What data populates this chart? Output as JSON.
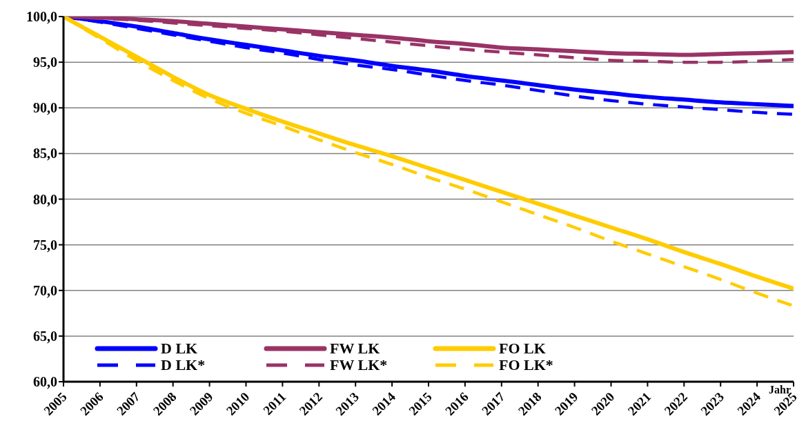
{
  "chart_data": {
    "type": "line",
    "xlabel": "Jahr",
    "x": [
      2005,
      2006,
      2007,
      2008,
      2009,
      2010,
      2011,
      2012,
      2013,
      2014,
      2015,
      2016,
      2017,
      2018,
      2019,
      2020,
      2021,
      2022,
      2023,
      2024,
      2025
    ],
    "xlim": [
      2005,
      2025
    ],
    "xticks": [
      2005,
      2006,
      2007,
      2008,
      2009,
      2010,
      2011,
      2012,
      2013,
      2014,
      2015,
      2016,
      2017,
      2018,
      2019,
      2020,
      2021,
      2022,
      2023,
      2024,
      2025
    ],
    "ylim": [
      60,
      100
    ],
    "yticks": [
      {
        "value": 60,
        "label": "60,0"
      },
      {
        "value": 65,
        "label": "65,0"
      },
      {
        "value": 70,
        "label": "70,0"
      },
      {
        "value": 75,
        "label": "75,0"
      },
      {
        "value": 80,
        "label": "80,0"
      },
      {
        "value": 85,
        "label": "85,0"
      },
      {
        "value": 90,
        "label": "90,0"
      },
      {
        "value": 95,
        "label": "95,0"
      },
      {
        "value": 100,
        "label": "100,0"
      }
    ],
    "grid": "y",
    "legend": "bottom left",
    "marker": "none",
    "series": [
      {
        "name": "D LK",
        "color": "#0000ff",
        "line_style": "solid",
        "values": [
          100,
          99.5,
          98.9,
          98.2,
          97.5,
          96.9,
          96.3,
          95.7,
          95.2,
          94.6,
          94.1,
          93.5,
          93.0,
          92.5,
          92.0,
          91.6,
          91.2,
          90.9,
          90.6,
          90.4,
          90.2
        ]
      },
      {
        "name": "D LK*",
        "color": "#0000ff",
        "line_style": "dashed",
        "values": [
          100,
          99.4,
          98.7,
          98.0,
          97.3,
          96.6,
          96.0,
          95.3,
          94.7,
          94.2,
          93.6,
          93.0,
          92.5,
          91.9,
          91.3,
          90.8,
          90.4,
          90.1,
          89.8,
          89.5,
          89.3
        ]
      },
      {
        "name": "FW LK",
        "color": "#993366",
        "line_style": "solid",
        "values": [
          100,
          99.9,
          99.7,
          99.5,
          99.2,
          98.9,
          98.6,
          98.3,
          98.0,
          97.7,
          97.3,
          97.0,
          96.6,
          96.4,
          96.2,
          96.0,
          95.9,
          95.8,
          95.9,
          96.0,
          96.1
        ]
      },
      {
        "name": "FW LK*",
        "color": "#993366",
        "line_style": "dashed",
        "values": [
          100,
          99.8,
          99.6,
          99.3,
          99.0,
          98.7,
          98.4,
          98.0,
          97.6,
          97.2,
          96.8,
          96.4,
          96.1,
          95.8,
          95.5,
          95.2,
          95.1,
          95.0,
          95.0,
          95.1,
          95.3
        ]
      },
      {
        "name": "FO LK",
        "color": "#ffcc00",
        "line_style": "solid",
        "values": [
          100,
          97.8,
          95.6,
          93.4,
          91.4,
          89.9,
          88.5,
          87.2,
          85.9,
          84.7,
          83.4,
          82.1,
          80.8,
          79.5,
          78.2,
          76.9,
          75.6,
          74.2,
          72.9,
          71.5,
          70.2
        ]
      },
      {
        "name": "FO LK*",
        "color": "#ffcc00",
        "line_style": "dashed",
        "values": [
          100,
          97.6,
          95.2,
          93.0,
          91.0,
          89.4,
          88.0,
          86.5,
          85.1,
          83.8,
          82.4,
          81.1,
          79.7,
          78.3,
          76.9,
          75.4,
          74.0,
          72.6,
          71.2,
          69.7,
          68.3
        ]
      }
    ]
  }
}
